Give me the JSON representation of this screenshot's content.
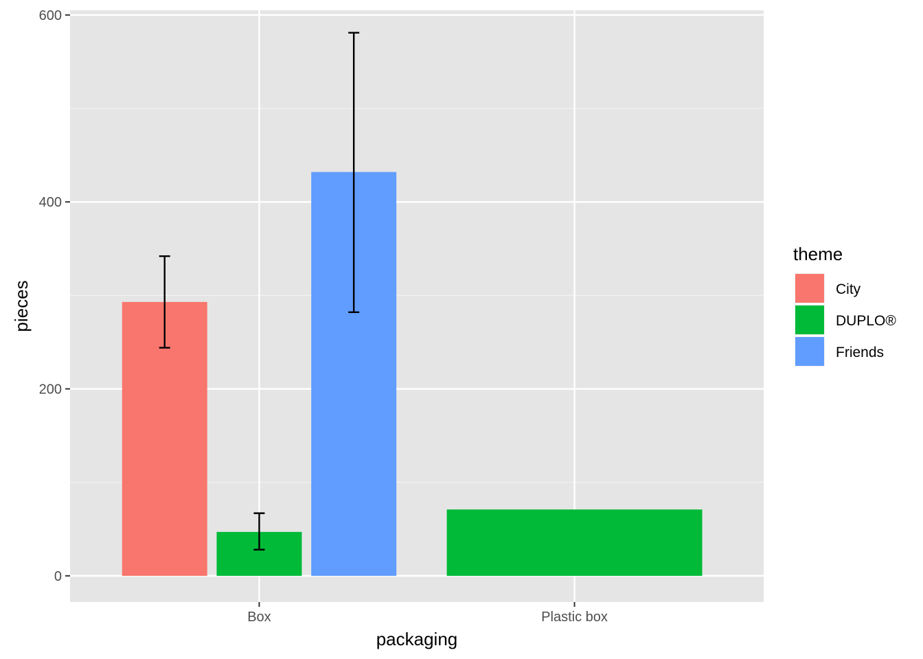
{
  "chart_data": {
    "type": "bar",
    "xlabel": "packaging",
    "ylabel": "pieces",
    "categories": [
      "Box",
      "Plastic box"
    ],
    "ylim": [
      -28,
      605
    ],
    "yticks": [
      0,
      200,
      400,
      600
    ],
    "grid": true,
    "legend_title": "theme",
    "legend_position": "right",
    "series": [
      {
        "name": "City",
        "color": "#F8766D",
        "values": [
          293,
          null
        ],
        "error": [
          [
            244,
            342
          ],
          null
        ]
      },
      {
        "name": "DUPLO®",
        "color": "#00BA38",
        "values": [
          47,
          71
        ],
        "error": [
          [
            28,
            67
          ],
          null
        ]
      },
      {
        "name": "Friends",
        "color": "#619CFF",
        "values": [
          432,
          null
        ],
        "error": [
          [
            282,
            581
          ],
          null
        ]
      }
    ]
  }
}
